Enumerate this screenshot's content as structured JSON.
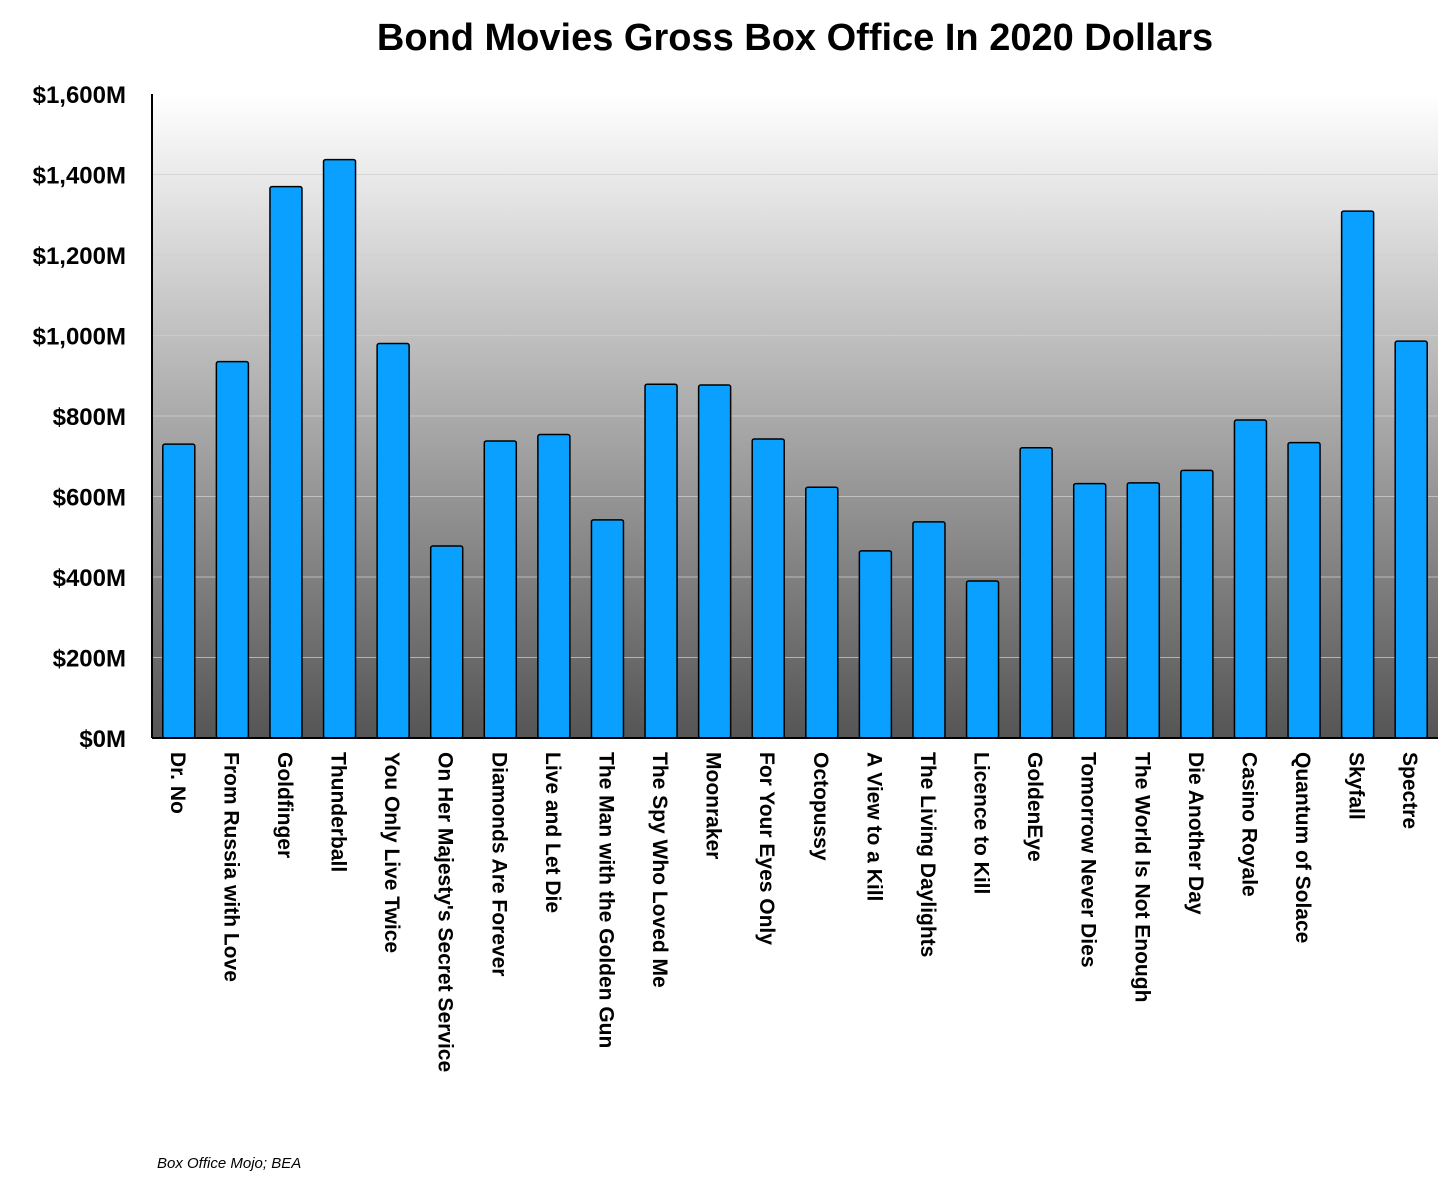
{
  "chart_data": {
    "type": "bar",
    "title": "Bond Movies Gross Box Office In 2020 Dollars",
    "xlabel": "",
    "ylabel": "",
    "ylim": [
      0,
      1600
    ],
    "yticks": [
      0,
      200,
      400,
      600,
      800,
      1000,
      1200,
      1400,
      1600
    ],
    "ytick_labels": [
      "$0M",
      "$200M",
      "$400M",
      "$600M",
      "$800M",
      "$1,000M",
      "$1,200M",
      "$1,400M",
      "$1,600M"
    ],
    "grid": true,
    "categories": [
      "Dr. No",
      "From Russia with Love",
      "Goldfinger",
      "Thunderball",
      "You Only Live Twice",
      "On Her Majesty's Secret Service",
      "Diamonds Are Forever",
      "Live and Let Die",
      "The Man with the Golden Gun",
      "The Spy Who Loved Me",
      "Moonraker",
      "For Your Eyes Only",
      "Octopussy",
      "A View to a Kill",
      "The Living Daylights",
      "Licence to Kill",
      "GoldenEye",
      "Tomorrow Never Dies",
      "The World Is Not Enough",
      "Die Another Day",
      "Casino Royale",
      "Quantum of Solace",
      "Skyfall",
      "Spectre"
    ],
    "values": [
      730,
      935,
      1370,
      1437,
      980,
      477,
      738,
      754,
      542,
      879,
      877,
      743,
      623,
      465,
      537,
      390,
      721,
      632,
      634,
      665,
      790,
      734,
      1309,
      986
    ],
    "bar_color": "#0aa0ff",
    "bar_edge_color": "#000000",
    "plot_background_gradient": [
      "#ffffff",
      "#555555"
    ]
  },
  "source": "Box Office Mojo; BEA"
}
